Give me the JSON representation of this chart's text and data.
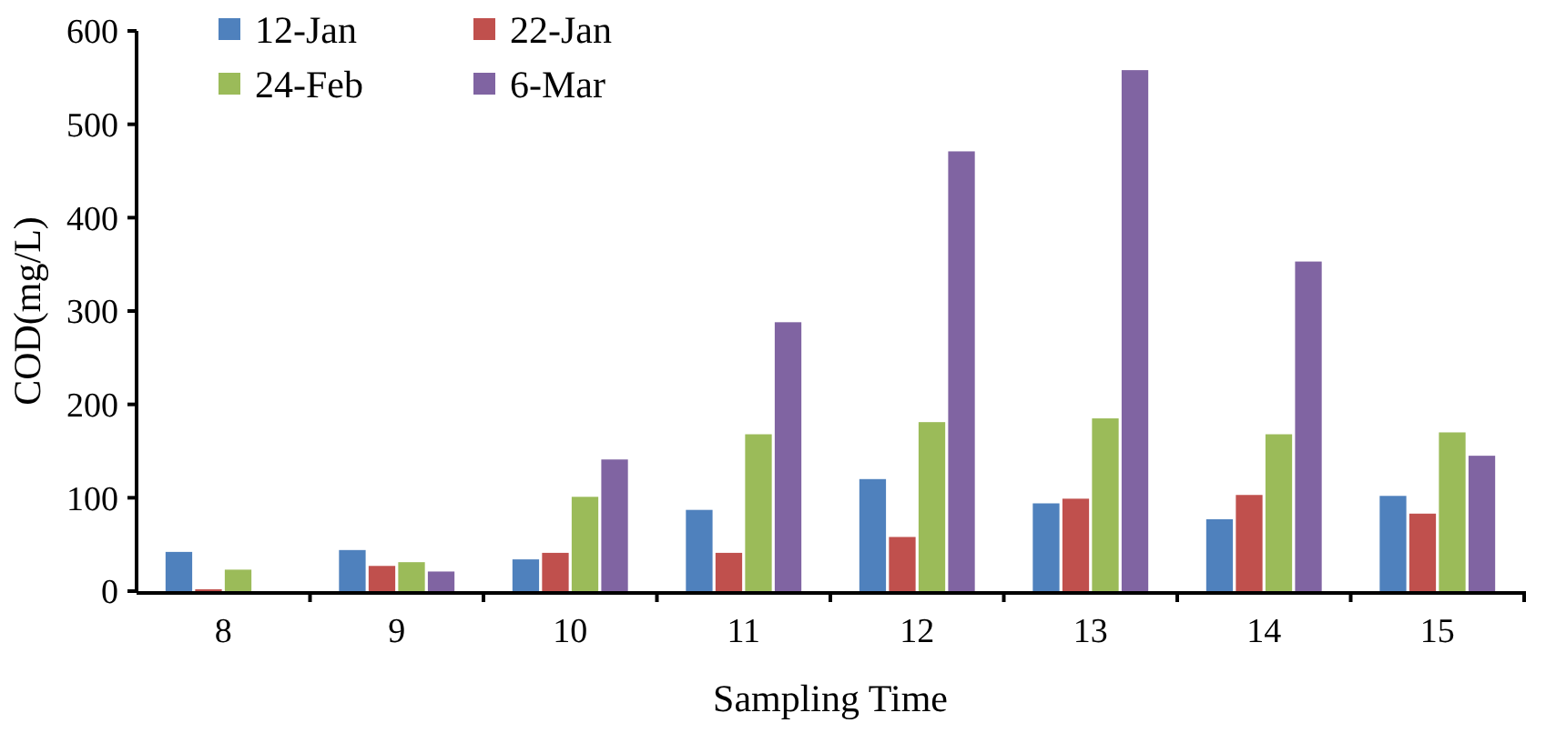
{
  "chart_data": {
    "type": "bar",
    "xlabel": "Sampling Time",
    "ylabel": "COD(mg/L)",
    "categories": [
      "8",
      "9",
      "10",
      "11",
      "12",
      "13",
      "14",
      "15"
    ],
    "series": [
      {
        "name": "12-Jan",
        "color": "#4f81bd",
        "values": [
          42,
          44,
          34,
          87,
          120,
          94,
          77,
          102
        ]
      },
      {
        "name": "22-Jan",
        "color": "#c0504d",
        "values": [
          2,
          27,
          41,
          41,
          58,
          99,
          103,
          83
        ]
      },
      {
        "name": "24-Feb",
        "color": "#9bbb59",
        "values": [
          23,
          31,
          101,
          168,
          181,
          185,
          168,
          170
        ]
      },
      {
        "name": "6-Mar",
        "color": "#8064a2",
        "values": [
          0,
          21,
          141,
          288,
          471,
          558,
          353,
          145
        ]
      }
    ],
    "ylim": [
      0,
      600
    ],
    "yticks": [
      0,
      100,
      200,
      300,
      400,
      500,
      600
    ],
    "grid": false,
    "legend": "top left"
  }
}
